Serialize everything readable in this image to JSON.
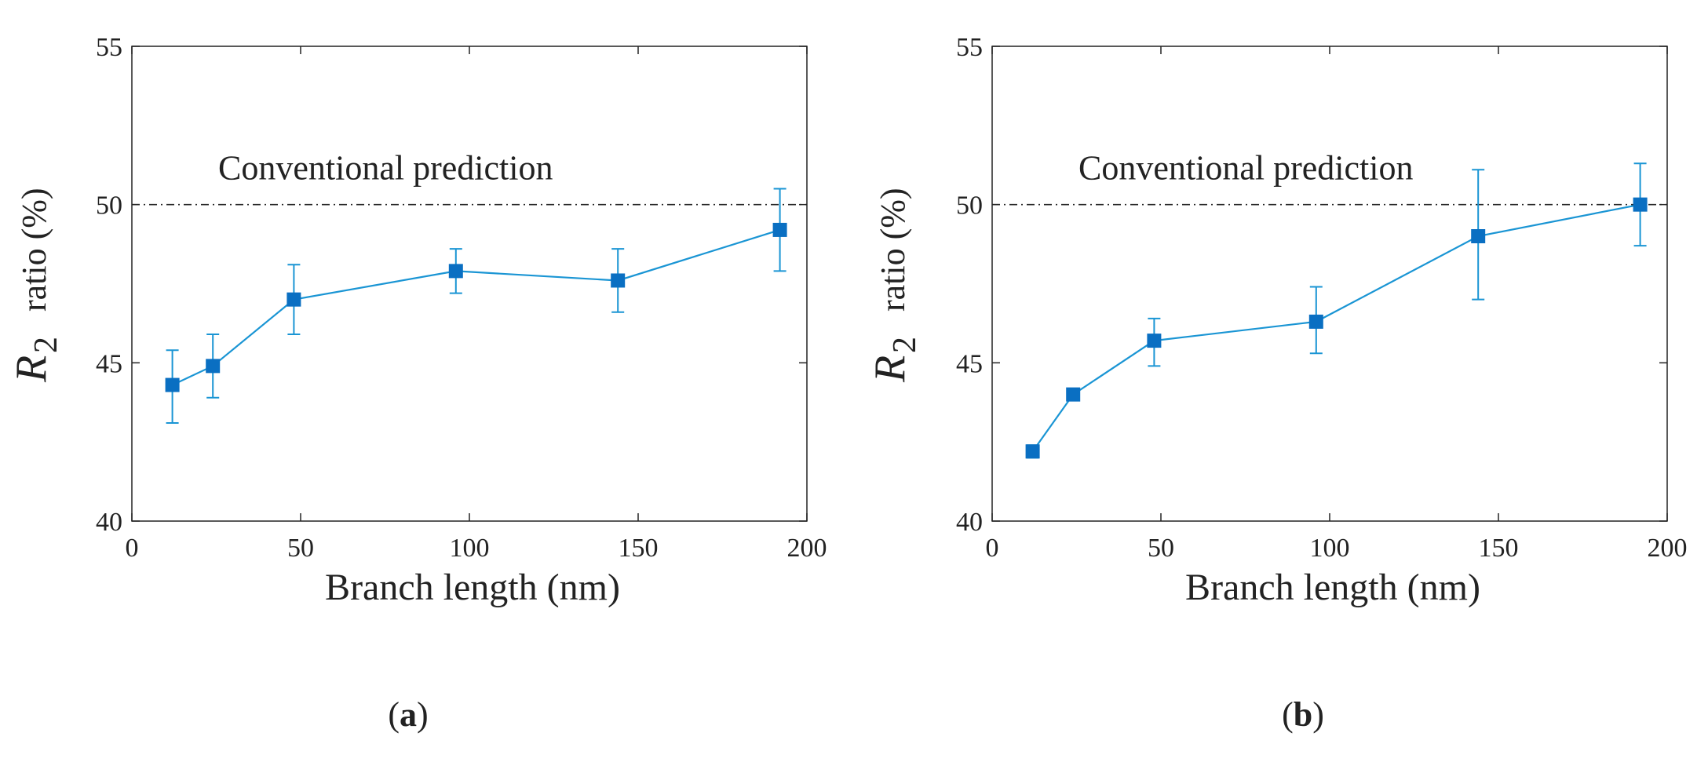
{
  "figure": {
    "panel_labels": [
      "a",
      "b"
    ]
  },
  "style": {
    "series_color": "#1a95d4",
    "marker_color": "#0a6fc2",
    "reference_line_color": "#222222",
    "axis_color": "#222222"
  },
  "chart_data": [
    {
      "type": "line",
      "panel": "a",
      "xlabel": "Branch length (nm)",
      "ylabel_symbol": "R",
      "ylabel_subscript": "2",
      "ylabel_rest": "ratio (%)",
      "xlim": [
        0,
        200
      ],
      "ylim": [
        40,
        55
      ],
      "xticks": [
        0,
        50,
        100,
        150,
        200
      ],
      "yticks": [
        40,
        45,
        50,
        55
      ],
      "grid": false,
      "reference_line": {
        "y": 50,
        "style": "dash-dot",
        "label": "Conventional prediction"
      },
      "series": [
        {
          "x": [
            12,
            24,
            48,
            96,
            144,
            192
          ],
          "y": [
            44.3,
            44.9,
            47.0,
            47.9,
            47.6,
            49.2
          ],
          "err_low": [
            43.1,
            43.9,
            45.9,
            47.2,
            46.6,
            47.9
          ],
          "err_high": [
            45.4,
            45.9,
            48.1,
            48.6,
            48.6,
            50.5
          ]
        }
      ]
    },
    {
      "type": "line",
      "panel": "b",
      "xlabel": "Branch length (nm)",
      "ylabel_symbol": "R",
      "ylabel_subscript": "2",
      "ylabel_rest": "ratio (%)",
      "xlim": [
        0,
        200
      ],
      "ylim": [
        40,
        55
      ],
      "xticks": [
        0,
        50,
        100,
        150,
        200
      ],
      "yticks": [
        40,
        45,
        50,
        55
      ],
      "grid": false,
      "reference_line": {
        "y": 50,
        "style": "dash-dot",
        "label": "Conventional prediction"
      },
      "series": [
        {
          "x": [
            12,
            24,
            48,
            96,
            144,
            192
          ],
          "y": [
            42.2,
            44.0,
            45.7,
            46.3,
            49.0,
            50.0
          ],
          "err_low": [
            42.0,
            43.9,
            44.9,
            45.3,
            47.0,
            48.7
          ],
          "err_high": [
            42.4,
            44.1,
            46.4,
            47.4,
            51.1,
            51.3
          ]
        }
      ]
    }
  ]
}
